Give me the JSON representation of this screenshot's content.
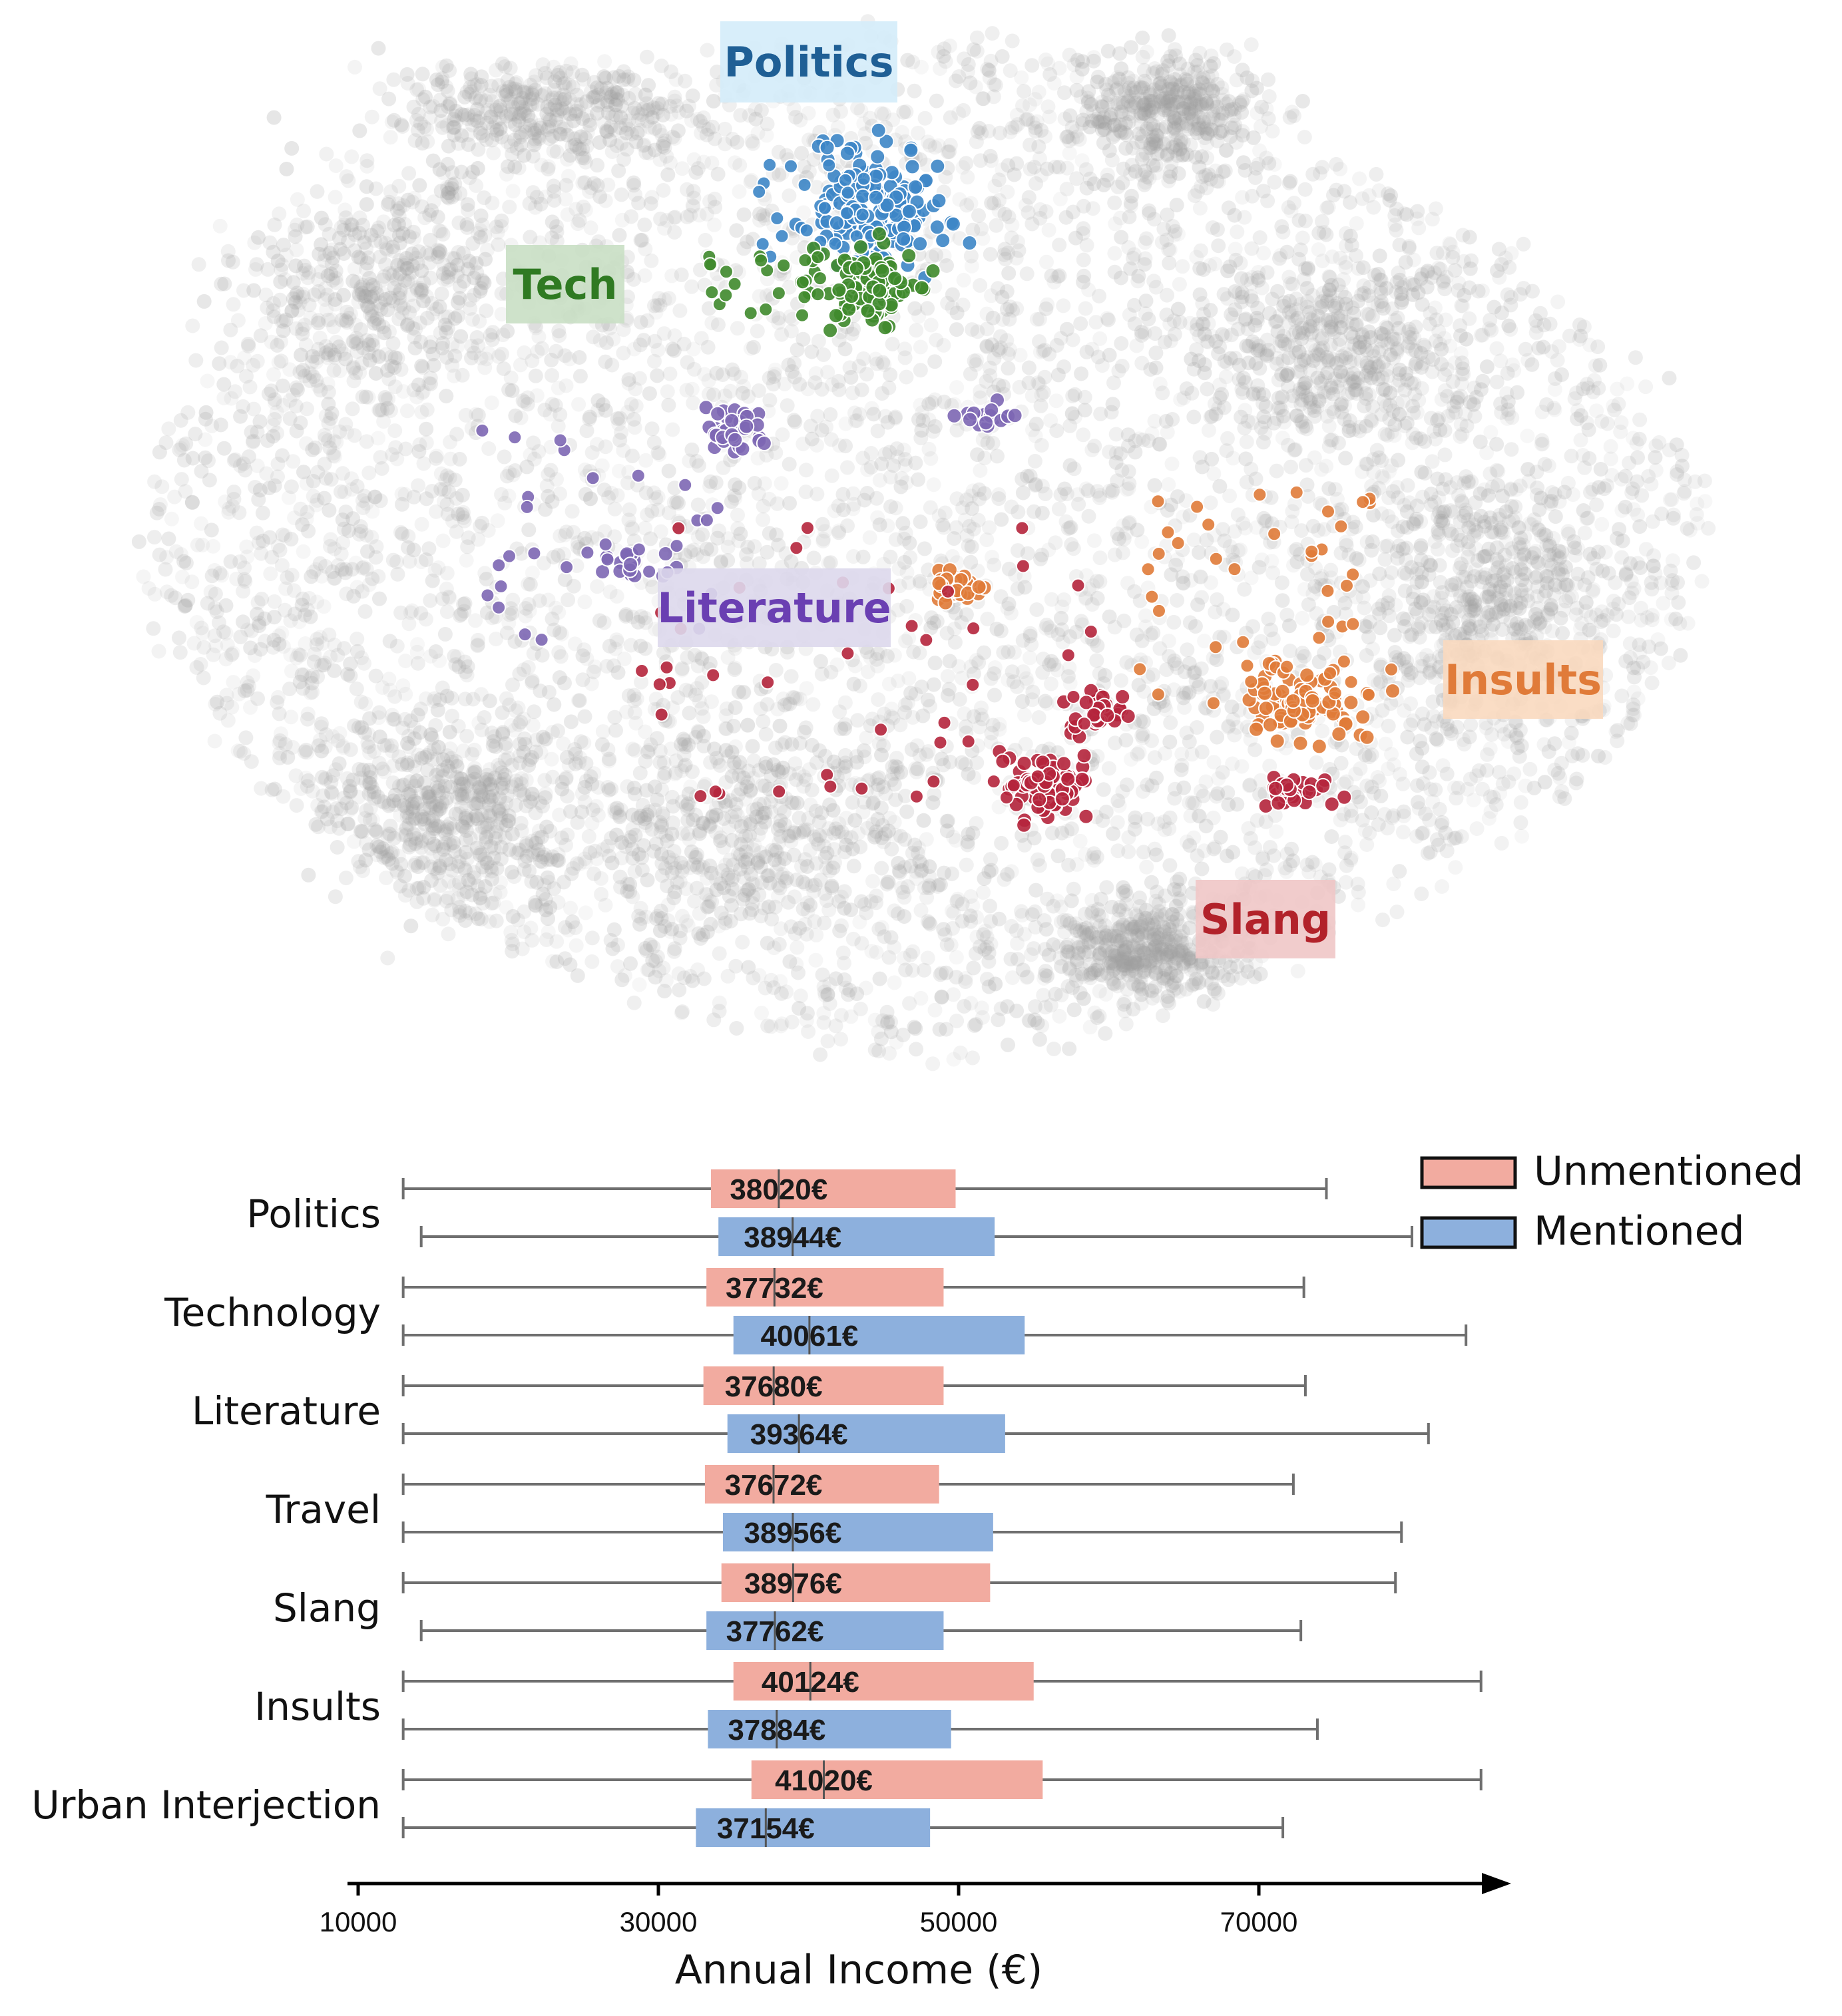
{
  "chart_data": [
    {
      "type": "scatter",
      "title": "",
      "xlabel": "",
      "ylabel": "",
      "background_color": "#9e9e9e",
      "clusters": [
        {
          "name": "Politics",
          "color": "#3d86c6",
          "label_bg": "#d4ecfa",
          "label_color": "#1f5f95"
        },
        {
          "name": "Tech",
          "color": "#3f8a2c",
          "label_bg": "#c9dfc4",
          "label_color": "#2f7a22"
        },
        {
          "name": "Literature",
          "color": "#7d67b4",
          "label_bg": "#ddd8ec",
          "label_color": "#6a3fb2"
        },
        {
          "name": "Insults",
          "color": "#e07b39",
          "label_bg": "#f9d9bf",
          "label_color": "#e07b39"
        },
        {
          "name": "Slang",
          "color": "#b5253c",
          "label_bg": "#efc6c6",
          "label_color": "#b2222a"
        }
      ]
    },
    {
      "type": "boxplot",
      "xlabel": "Annual Income (€)",
      "ylabel": "",
      "xlim": [
        10000,
        87000
      ],
      "xticks": [
        "10000",
        "30000",
        "50000",
        "70000"
      ],
      "legend": {
        "position": "top-right",
        "items": [
          {
            "label": "Unmentioned",
            "color": "#f2aba0"
          },
          {
            "label": "Mentioned",
            "color": "#8db0dd"
          }
        ]
      },
      "categories": [
        "Politics",
        "Technology",
        "Literature",
        "Travel",
        "Slang",
        "Insults",
        "Urban Interjection"
      ],
      "series": [
        {
          "name": "Unmentioned",
          "color": "#f2aba0",
          "boxes": [
            {
              "min": 13000,
              "q1": 33500,
              "median": 38020,
              "q3": 49800,
              "max": 74500,
              "label": "38020€"
            },
            {
              "min": 13000,
              "q1": 33200,
              "median": 37732,
              "q3": 49000,
              "max": 73000,
              "label": "37732€"
            },
            {
              "min": 13000,
              "q1": 33000,
              "median": 37680,
              "q3": 49000,
              "max": 73100,
              "label": "37680€"
            },
            {
              "min": 13000,
              "q1": 33100,
              "median": 37672,
              "q3": 48700,
              "max": 72300,
              "label": "37672€"
            },
            {
              "min": 13000,
              "q1": 34200,
              "median": 38976,
              "q3": 52100,
              "max": 79100,
              "label": "38976€"
            },
            {
              "min": 13000,
              "q1": 35000,
              "median": 40124,
              "q3": 55000,
              "max": 84800,
              "label": "40124€"
            },
            {
              "min": 13000,
              "q1": 36200,
              "median": 41020,
              "q3": 55600,
              "max": 84800,
              "label": "41020€"
            }
          ]
        },
        {
          "name": "Mentioned",
          "color": "#8db0dd",
          "boxes": [
            {
              "min": 14200,
              "q1": 34000,
              "median": 38944,
              "q3": 52400,
              "max": 80200,
              "label": "38944€"
            },
            {
              "min": 13000,
              "q1": 35000,
              "median": 40061,
              "q3": 54400,
              "max": 83800,
              "label": "40061€"
            },
            {
              "min": 13000,
              "q1": 34600,
              "median": 39364,
              "q3": 53100,
              "max": 81300,
              "label": "39364€"
            },
            {
              "min": 13000,
              "q1": 34300,
              "median": 38956,
              "q3": 52300,
              "max": 79500,
              "label": "38956€"
            },
            {
              "min": 14200,
              "q1": 33200,
              "median": 37762,
              "q3": 49000,
              "max": 72800,
              "label": "37762€"
            },
            {
              "min": 13000,
              "q1": 33300,
              "median": 37884,
              "q3": 49500,
              "max": 73900,
              "label": "37884€"
            },
            {
              "min": 13000,
              "q1": 32500,
              "median": 37154,
              "q3": 48100,
              "max": 71600,
              "label": "37154€"
            }
          ]
        }
      ]
    }
  ]
}
